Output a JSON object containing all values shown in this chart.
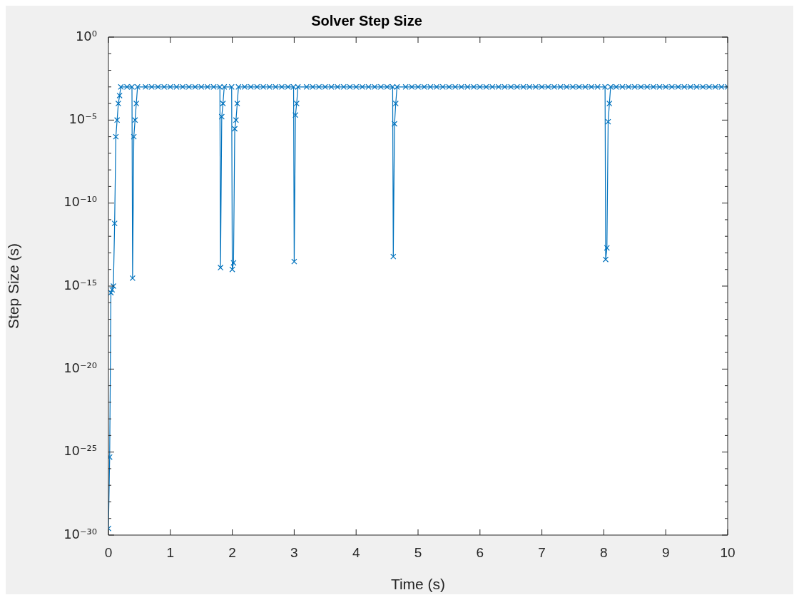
{
  "chart_data": {
    "type": "line",
    "title": "Solver Step Size",
    "xlabel": "Time (s)",
    "ylabel": "Step Size (s)",
    "log": "y",
    "marker": "cross",
    "line_style": "solid",
    "grid": false,
    "legend": false,
    "xlim": [
      0,
      10
    ],
    "xticks": [
      0,
      1,
      2,
      3,
      4,
      5,
      6,
      7,
      8,
      9,
      10
    ],
    "ylim": [
      1e-30,
      1
    ],
    "yticks": [
      {
        "value": 1,
        "label": "10⁰"
      },
      {
        "value": 0.1,
        "label": null
      },
      {
        "value": 0.01,
        "label": null
      },
      {
        "value": 0.001,
        "label": null
      },
      {
        "value": 0.0001,
        "label": null
      },
      {
        "value": 1e-05,
        "label": "10⁻⁵"
      },
      {
        "value": 1e-06,
        "label": null
      },
      {
        "value": 1e-07,
        "label": null
      },
      {
        "value": 1e-08,
        "label": null
      },
      {
        "value": 1e-09,
        "label": null
      },
      {
        "value": 1e-10,
        "label": "10⁻¹⁰"
      },
      {
        "value": 1e-11,
        "label": null
      },
      {
        "value": 1e-12,
        "label": null
      },
      {
        "value": 1e-13,
        "label": null
      },
      {
        "value": 1e-14,
        "label": null
      },
      {
        "value": 1e-15,
        "label": "10⁻¹⁵"
      },
      {
        "value": 1e-16,
        "label": null
      },
      {
        "value": 1e-17,
        "label": null
      },
      {
        "value": 1e-18,
        "label": null
      },
      {
        "value": 1e-19,
        "label": null
      },
      {
        "value": 1e-20,
        "label": "10⁻²⁰"
      },
      {
        "value": 1e-21,
        "label": null
      },
      {
        "value": 1e-22,
        "label": null
      },
      {
        "value": 1e-23,
        "label": null
      },
      {
        "value": 1e-24,
        "label": null
      },
      {
        "value": 1e-25,
        "label": "10⁻²⁵"
      },
      {
        "value": 1e-26,
        "label": null
      },
      {
        "value": 1e-27,
        "label": null
      },
      {
        "value": 1e-28,
        "label": null
      },
      {
        "value": 1e-29,
        "label": null
      },
      {
        "value": 1e-30,
        "label": "10⁻³⁰"
      }
    ],
    "series": [
      {
        "color": "#0072bd",
        "x": [
          0,
          0.02,
          0.04,
          0.06,
          0.08,
          0.1,
          0.12,
          0.14,
          0.16,
          0.18,
          0.2,
          0.3,
          0.38,
          0.39,
          0.41,
          0.43,
          0.45,
          0.47,
          0.6,
          0.7,
          0.8,
          0.9,
          1.0,
          1.1,
          1.2,
          1.3,
          1.4,
          1.5,
          1.6,
          1.7,
          1.8,
          1.81,
          1.83,
          1.85,
          1.87,
          1.99,
          2.0,
          2.02,
          2.04,
          2.06,
          2.08,
          2.1,
          2.2,
          2.3,
          2.4,
          2.5,
          2.6,
          2.7,
          2.8,
          2.9,
          2.99,
          3.0,
          3.02,
          3.04,
          3.06,
          3.2,
          3.3,
          3.4,
          3.5,
          3.6,
          3.7,
          3.8,
          3.9,
          4.0,
          4.1,
          4.2,
          4.3,
          4.4,
          4.5,
          4.59,
          4.6,
          4.62,
          4.64,
          4.66,
          4.8,
          4.9,
          5.0,
          5.1,
          5.2,
          5.3,
          5.4,
          5.5,
          5.6,
          5.7,
          5.8,
          5.9,
          6.0,
          6.1,
          6.2,
          6.3,
          6.4,
          6.5,
          6.6,
          6.7,
          6.8,
          6.9,
          7.0,
          7.1,
          7.2,
          7.3,
          7.4,
          7.5,
          7.6,
          7.7,
          7.8,
          7.9,
          8.02,
          8.03,
          8.05,
          8.07,
          8.09,
          8.11,
          8.2,
          8.3,
          8.4,
          8.5,
          8.6,
          8.7,
          8.8,
          8.9,
          9.0,
          9.1,
          9.2,
          9.3,
          9.4,
          9.5,
          9.6,
          9.7,
          9.8,
          9.9,
          10.0
        ],
        "values": [
          2.5e-30,
          5e-26,
          4e-16,
          6e-16,
          1e-15,
          6e-12,
          1e-06,
          1e-05,
          0.0001,
          0.0003,
          0.001,
          0.001,
          0.001,
          3e-15,
          1e-06,
          1e-05,
          0.0001,
          0.001,
          0.001,
          0.001,
          0.001,
          0.001,
          0.001,
          0.001,
          0.001,
          0.001,
          0.001,
          0.001,
          0.001,
          0.001,
          0.001,
          1.3e-14,
          1.6e-05,
          0.0001,
          0.001,
          0.001,
          1e-14,
          2.5e-14,
          3e-06,
          1e-05,
          0.0001,
          0.001,
          0.001,
          0.001,
          0.001,
          0.001,
          0.001,
          0.001,
          0.001,
          0.001,
          0.001,
          3e-14,
          2e-05,
          0.0001,
          0.001,
          0.001,
          0.001,
          0.001,
          0.001,
          0.001,
          0.001,
          0.001,
          0.001,
          0.001,
          0.001,
          0.001,
          0.001,
          0.001,
          0.001,
          0.001,
          6e-14,
          6e-06,
          0.0001,
          0.001,
          0.001,
          0.001,
          0.001,
          0.001,
          0.001,
          0.001,
          0.001,
          0.001,
          0.001,
          0.001,
          0.001,
          0.001,
          0.001,
          0.001,
          0.001,
          0.001,
          0.001,
          0.001,
          0.001,
          0.001,
          0.001,
          0.001,
          0.001,
          0.001,
          0.001,
          0.001,
          0.001,
          0.001,
          0.001,
          0.001,
          0.001,
          0.001,
          0.001,
          4e-14,
          2e-13,
          8e-06,
          0.0001,
          0.001,
          0.001,
          0.001,
          0.001,
          0.001,
          0.001,
          0.001,
          0.001,
          0.001,
          0.001,
          0.001,
          0.001,
          0.001,
          0.001,
          0.001,
          0.001,
          0.001,
          0.001,
          0.001,
          0.001
        ]
      }
    ]
  }
}
